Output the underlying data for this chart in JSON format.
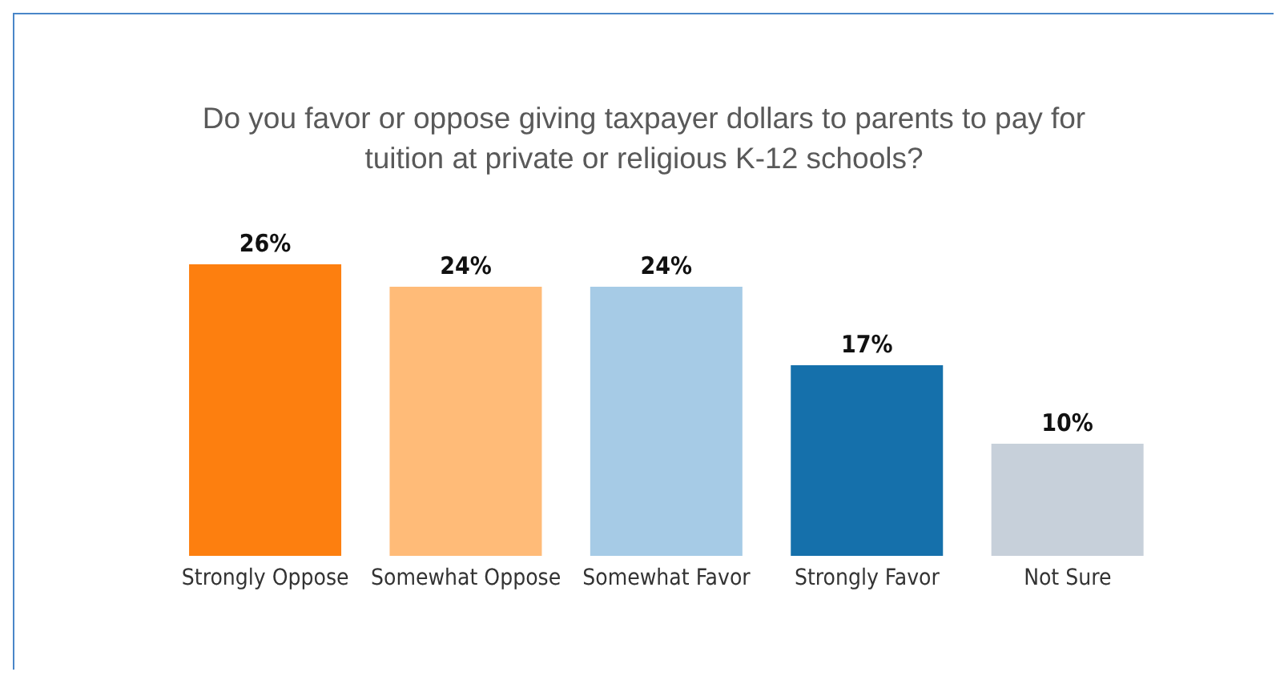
{
  "chart_data": {
    "type": "bar",
    "title": "Do you favor or oppose giving taxpayer dollars to parents to pay for tuition at private or religious K-12 schools?",
    "categories": [
      "Strongly Oppose",
      "Somewhat Oppose",
      "Somewhat Favor",
      "Strongly Favor",
      "Not Sure"
    ],
    "values": [
      26,
      24,
      24,
      17,
      10
    ],
    "colors": [
      "#fd7f0f",
      "#ffbb78",
      "#a6cbe6",
      "#1570ab",
      "#c7d0da"
    ],
    "value_labels": [
      "26%",
      "24%",
      "24%",
      "17%",
      "10%"
    ]
  }
}
